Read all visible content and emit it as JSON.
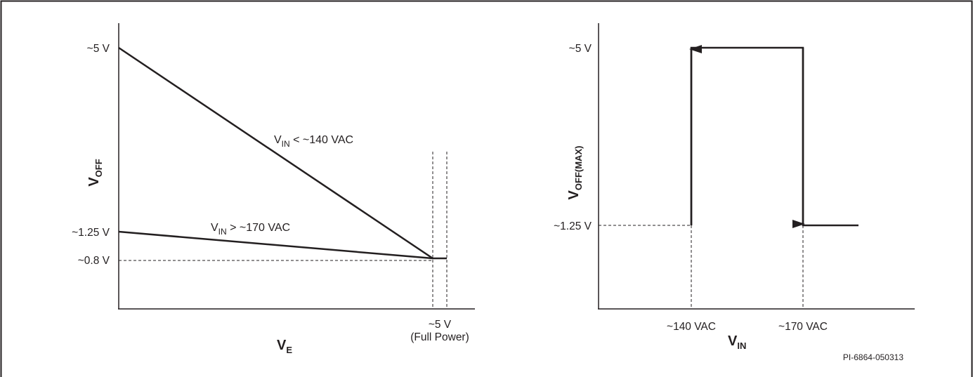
{
  "figure_id": "PI-6864-050313",
  "chart_data": [
    {
      "type": "line",
      "ylabel": {
        "main": "V",
        "sub": "OFF"
      },
      "xlabel": {
        "main": "V",
        "sub": "E"
      },
      "y_ticks": [
        {
          "label": "~5 V",
          "value": 5
        },
        {
          "label": "~1.25 V",
          "value": 1.25
        },
        {
          "label": "~0.8 V",
          "value": 0.8
        }
      ],
      "x_ticks": [
        {
          "label": "~5 V",
          "value": 5,
          "note": "(Full Power)"
        }
      ],
      "xlim": [
        0,
        5.25
      ],
      "ylim": [
        0,
        5
      ],
      "series": [
        {
          "name": {
            "main": "V",
            "sub": "IN",
            "rest": " < ~140 VAC"
          },
          "x": [
            0,
            4.75,
            5
          ],
          "y": [
            5,
            0.8,
            0.8
          ]
        },
        {
          "name": {
            "main": "V",
            "sub": "IN",
            "rest": " > ~170 VAC"
          },
          "x": [
            0,
            4.75,
            5
          ],
          "y": [
            1.25,
            0.8,
            0.8
          ]
        }
      ]
    },
    {
      "type": "line",
      "ylabel": {
        "main": "V",
        "sub": "OFF(MAX)"
      },
      "xlabel": {
        "main": "V",
        "sub": "IN"
      },
      "y_ticks": [
        {
          "label": "~5 V",
          "value": 5
        },
        {
          "label": "~1.25 V",
          "value": 1.25
        }
      ],
      "x_ticks": [
        {
          "label": "~140 VAC",
          "value": 140
        },
        {
          "label": "~170 VAC",
          "value": 170
        }
      ],
      "series": [
        {
          "x": [
            140,
            140,
            170,
            170,
            185
          ],
          "y": [
            1.25,
            5,
            5,
            1.25,
            1.25
          ]
        }
      ]
    }
  ]
}
